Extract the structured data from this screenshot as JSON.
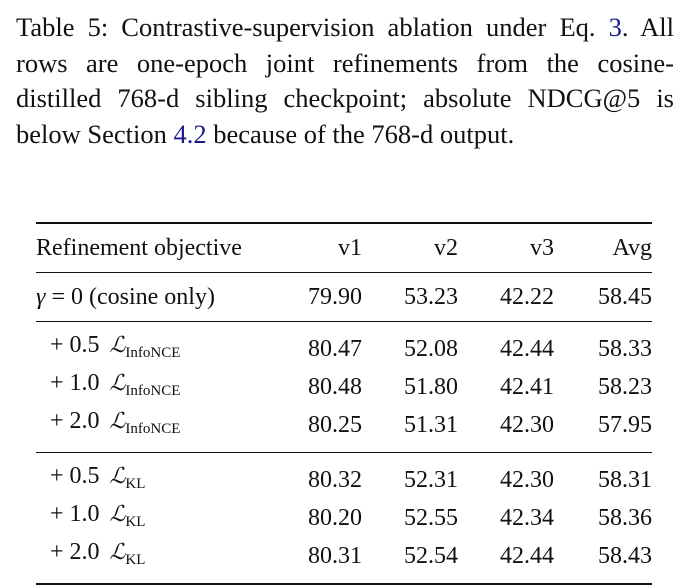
{
  "caption": {
    "lead": "Table 5: Contrastive-supervision ablation under Eq. ",
    "eq_ref": "3",
    "middle": ". All rows are one-epoch joint refinements from the cosine-distilled 768-d sibling checkpoint; absolute NDCG@5 is below Section ",
    "sec_ref": "4.2",
    "tail": " because of the 768-d output."
  },
  "table": {
    "headers": [
      "Refinement objective",
      "v1",
      "v2",
      "v3",
      "Avg"
    ],
    "baseline": {
      "gamma_symbol": "γ",
      "gamma_rest": " = 0 (cosine only)",
      "values": [
        "79.90",
        "53.23",
        "42.22",
        "58.45"
      ]
    },
    "infonce_rows": [
      {
        "prefix": "+ 0.5 ",
        "loss_symbol": "ℒ",
        "loss_sub": "InfoNCE",
        "values": [
          "80.47",
          "52.08",
          "42.44",
          "58.33"
        ]
      },
      {
        "prefix": "+ 1.0 ",
        "loss_symbol": "ℒ",
        "loss_sub": "InfoNCE",
        "values": [
          "80.48",
          "51.80",
          "42.41",
          "58.23"
        ]
      },
      {
        "prefix": "+ 2.0 ",
        "loss_symbol": "ℒ",
        "loss_sub": "InfoNCE",
        "values": [
          "80.25",
          "51.31",
          "42.30",
          "57.95"
        ]
      }
    ],
    "kl_rows": [
      {
        "prefix": "+ 0.5 ",
        "loss_symbol": "ℒ",
        "loss_sub": "KL",
        "values": [
          "80.32",
          "52.31",
          "42.30",
          "58.31"
        ]
      },
      {
        "prefix": "+ 1.0 ",
        "loss_symbol": "ℒ",
        "loss_sub": "KL",
        "values": [
          "80.20",
          "52.55",
          "42.34",
          "58.36"
        ]
      },
      {
        "prefix": "+ 2.0 ",
        "loss_symbol": "ℒ",
        "loss_sub": "KL",
        "values": [
          "80.31",
          "52.54",
          "42.44",
          "58.43"
        ]
      }
    ]
  }
}
